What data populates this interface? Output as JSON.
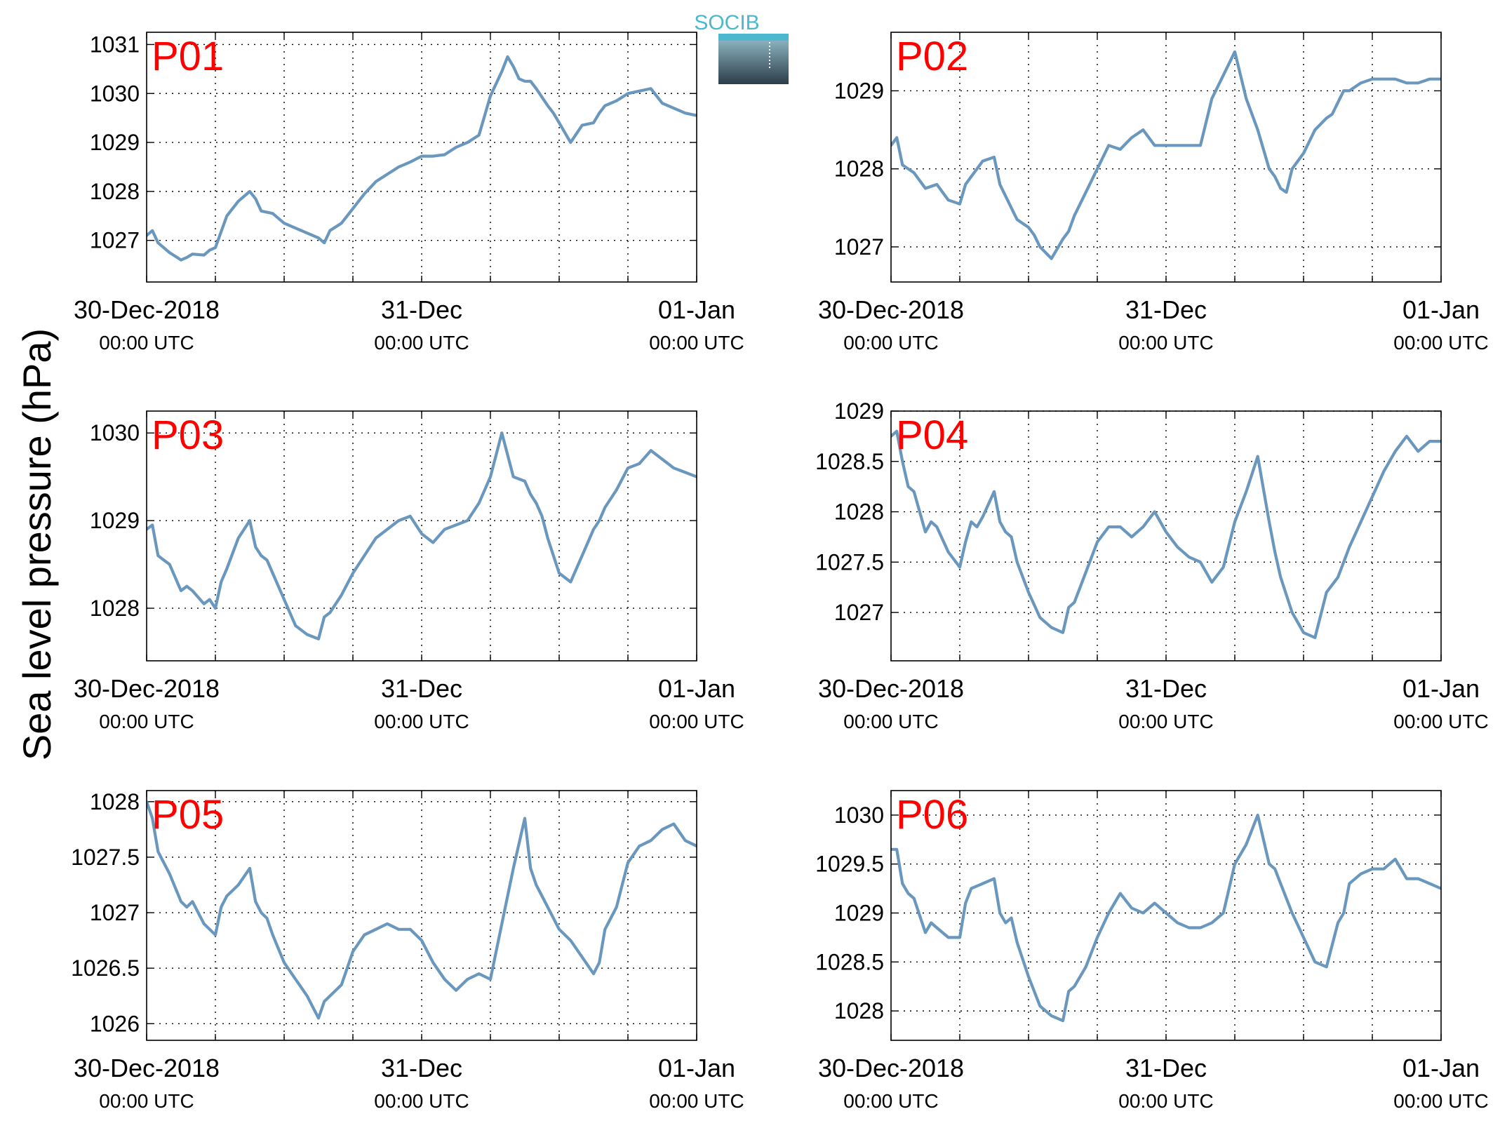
{
  "figure": {
    "ylabel": "Sea level pressure (hPa)",
    "logo": {
      "text": "SOCIB",
      "colors": [
        "#4bb8d0",
        "#8ab0bd",
        "#2b3d48"
      ]
    },
    "line_color": "#6a97bd",
    "label_color": "#ff0000"
  },
  "chart_data": [
    {
      "type": "line",
      "title": "P01",
      "x_range": [
        0,
        48
      ],
      "ylim": [
        1026.15,
        1031.25
      ],
      "yticks": [
        1027,
        1028,
        1029,
        1030,
        1031
      ],
      "ytick_labels": [
        "1027",
        "1028",
        "1029",
        "1030",
        "1031"
      ],
      "xticks": [
        0,
        24,
        48
      ],
      "xtick_labels": [
        [
          "30-Dec-2018",
          "00:00 UTC"
        ],
        [
          "31-Dec",
          "00:00 UTC"
        ],
        [
          "01-Jan",
          "00:00 UTC"
        ]
      ],
      "xgrid": [
        0,
        6,
        12,
        18,
        24,
        30,
        36,
        42,
        48
      ],
      "grid": true,
      "x": [
        0,
        0.5,
        1,
        2,
        3,
        3.5,
        4,
        5,
        5.5,
        6,
        7,
        8,
        9,
        9.5,
        10,
        11,
        12,
        13,
        14,
        15,
        15.5,
        16,
        17,
        18,
        19,
        20,
        21,
        22,
        23,
        24,
        25,
        26,
        27,
        28,
        29,
        30,
        31,
        31.5,
        32,
        32.5,
        33,
        33.5,
        34,
        35,
        35.5,
        36,
        37,
        38,
        39,
        39.5,
        40,
        41,
        42,
        43,
        44,
        44.5,
        45,
        46,
        47,
        48
      ],
      "y": [
        1027.1,
        1027.2,
        1026.95,
        1026.75,
        1026.6,
        1026.65,
        1026.72,
        1026.7,
        1026.8,
        1026.85,
        1027.5,
        1027.8,
        1028.0,
        1027.85,
        1027.6,
        1027.55,
        1027.35,
        1027.25,
        1027.15,
        1027.05,
        1026.95,
        1027.2,
        1027.35,
        1027.65,
        1027.95,
        1028.2,
        1028.35,
        1028.5,
        1028.6,
        1028.72,
        1028.72,
        1028.75,
        1028.9,
        1029.0,
        1029.15,
        1029.95,
        1030.45,
        1030.75,
        1030.55,
        1030.3,
        1030.25,
        1030.25,
        1030.1,
        1029.75,
        1029.6,
        1029.4,
        1029.0,
        1029.35,
        1029.4,
        1029.6,
        1029.75,
        1029.85,
        1030.0,
        1030.05,
        1030.1,
        1029.95,
        1029.8,
        1029.7,
        1029.6,
        1029.55
      ]
    },
    {
      "type": "line",
      "title": "P02",
      "x_range": [
        0,
        48
      ],
      "ylim": [
        1026.55,
        1029.75
      ],
      "yticks": [
        1027,
        1028,
        1029
      ],
      "ytick_labels": [
        "1027",
        "1028",
        "1029"
      ],
      "xticks": [
        0,
        24,
        48
      ],
      "xtick_labels": [
        [
          "30-Dec-2018",
          "00:00 UTC"
        ],
        [
          "31-Dec",
          "00:00 UTC"
        ],
        [
          "01-Jan",
          "00:00 UTC"
        ]
      ],
      "xgrid": [
        0,
        6,
        12,
        18,
        24,
        30,
        36,
        42,
        48
      ],
      "grid": true,
      "x": [
        0,
        0.5,
        1,
        1.5,
        2,
        3,
        4,
        5,
        6,
        6.5,
        7,
        7.5,
        8,
        9,
        9.5,
        10,
        11,
        12,
        12.5,
        13,
        14,
        15,
        15.5,
        16,
        17,
        18,
        19,
        20,
        21,
        22,
        23,
        24,
        25,
        26,
        27,
        28,
        29,
        30,
        31,
        32,
        33,
        33.5,
        34,
        34.5,
        35,
        36,
        37,
        38,
        38.5,
        39,
        39.5,
        40,
        41,
        42,
        43,
        44,
        45,
        46,
        47,
        48
      ],
      "y": [
        1028.3,
        1028.4,
        1028.05,
        1028.0,
        1027.95,
        1027.75,
        1027.8,
        1027.6,
        1027.55,
        1027.8,
        1027.9,
        1028.0,
        1028.1,
        1028.15,
        1027.8,
        1027.65,
        1027.35,
        1027.25,
        1027.15,
        1027.0,
        1026.85,
        1027.1,
        1027.2,
        1027.4,
        1027.7,
        1028.0,
        1028.3,
        1028.25,
        1028.4,
        1028.5,
        1028.3,
        1028.3,
        1028.3,
        1028.3,
        1028.3,
        1028.9,
        1029.2,
        1029.5,
        1028.9,
        1028.5,
        1028.0,
        1027.9,
        1027.75,
        1027.7,
        1028.0,
        1028.2,
        1028.5,
        1028.65,
        1028.7,
        1028.85,
        1029.0,
        1029.0,
        1029.1,
        1029.15,
        1029.15,
        1029.15,
        1029.1,
        1029.1,
        1029.15,
        1029.15
      ]
    },
    {
      "type": "line",
      "title": "P03",
      "x_range": [
        0,
        48
      ],
      "ylim": [
        1027.4,
        1030.25
      ],
      "yticks": [
        1028,
        1029,
        1030
      ],
      "ytick_labels": [
        "1028",
        "1029",
        "1030"
      ],
      "xticks": [
        0,
        24,
        48
      ],
      "xtick_labels": [
        [
          "30-Dec-2018",
          "00:00 UTC"
        ],
        [
          "31-Dec",
          "00:00 UTC"
        ],
        [
          "01-Jan",
          "00:00 UTC"
        ]
      ],
      "xgrid": [
        0,
        6,
        12,
        18,
        24,
        30,
        36,
        42,
        48
      ],
      "grid": true,
      "x": [
        0,
        0.5,
        1,
        1.5,
        2,
        3,
        3.5,
        4,
        5,
        5.5,
        6,
        6.5,
        7,
        8,
        9,
        9.5,
        10,
        10.5,
        11,
        12,
        13,
        14,
        15,
        15.5,
        16,
        17,
        18,
        19,
        20,
        21,
        22,
        23,
        24,
        25,
        26,
        27,
        28,
        29,
        30,
        31,
        32,
        33,
        33.5,
        34,
        34.5,
        35,
        36,
        37,
        38,
        39,
        39.5,
        40,
        41,
        42,
        43,
        44,
        45,
        46,
        47,
        48
      ],
      "y": [
        1028.9,
        1028.95,
        1028.6,
        1028.55,
        1028.5,
        1028.2,
        1028.25,
        1028.2,
        1028.05,
        1028.1,
        1028.0,
        1028.3,
        1028.45,
        1028.8,
        1029.0,
        1028.7,
        1028.6,
        1028.55,
        1028.4,
        1028.1,
        1027.8,
        1027.7,
        1027.65,
        1027.9,
        1027.95,
        1028.15,
        1028.4,
        1028.6,
        1028.8,
        1028.9,
        1029.0,
        1029.05,
        1028.85,
        1028.75,
        1028.9,
        1028.95,
        1029.0,
        1029.2,
        1029.5,
        1030.0,
        1029.5,
        1029.45,
        1029.3,
        1029.2,
        1029.05,
        1028.8,
        1028.4,
        1028.3,
        1028.6,
        1028.9,
        1029.0,
        1029.15,
        1029.35,
        1029.6,
        1029.65,
        1029.8,
        1029.7,
        1029.6,
        1029.55,
        1029.5
      ]
    },
    {
      "type": "line",
      "title": "P04",
      "x_range": [
        0,
        48
      ],
      "ylim": [
        1026.52,
        1029.0
      ],
      "yticks": [
        1027,
        1027.5,
        1028,
        1028.5,
        1029
      ],
      "ytick_labels": [
        "1027",
        "1027.5",
        "1028",
        "1028.5",
        "1029"
      ],
      "xticks": [
        0,
        24,
        48
      ],
      "xtick_labels": [
        [
          "30-Dec-2018",
          "00:00 UTC"
        ],
        [
          "31-Dec",
          "00:00 UTC"
        ],
        [
          "01-Jan",
          "00:00 UTC"
        ]
      ],
      "xgrid": [
        0,
        6,
        12,
        18,
        24,
        30,
        36,
        42,
        48
      ],
      "grid": true,
      "x": [
        0,
        0.5,
        1,
        1.5,
        2,
        3,
        3.5,
        4,
        5,
        6,
        6.5,
        7,
        7.5,
        8,
        9,
        9.5,
        10,
        10.5,
        11,
        12,
        13,
        14,
        15,
        15.5,
        16,
        17,
        18,
        19,
        20,
        21,
        22,
        23,
        24,
        25,
        26,
        27,
        28,
        29,
        30,
        31,
        32,
        33,
        33.5,
        34,
        35,
        36,
        37,
        38,
        39,
        39.5,
        40,
        41,
        42,
        43,
        44,
        45,
        46,
        47,
        48
      ],
      "y": [
        1028.75,
        1028.8,
        1028.5,
        1028.25,
        1028.2,
        1027.8,
        1027.9,
        1027.85,
        1027.6,
        1027.45,
        1027.7,
        1027.9,
        1027.85,
        1027.95,
        1028.2,
        1027.9,
        1027.8,
        1027.75,
        1027.5,
        1027.2,
        1026.95,
        1026.85,
        1026.8,
        1027.05,
        1027.1,
        1027.4,
        1027.7,
        1027.85,
        1027.85,
        1027.75,
        1027.85,
        1028.0,
        1027.8,
        1027.65,
        1027.55,
        1027.5,
        1027.3,
        1027.45,
        1027.9,
        1028.2,
        1028.55,
        1027.9,
        1027.6,
        1027.35,
        1027.0,
        1026.8,
        1026.75,
        1027.2,
        1027.35,
        1027.5,
        1027.65,
        1027.9,
        1028.15,
        1028.4,
        1028.6,
        1028.75,
        1028.6,
        1028.7,
        1028.7
      ]
    },
    {
      "type": "line",
      "title": "P05",
      "x_range": [
        0,
        48
      ],
      "ylim": [
        1025.85,
        1028.1
      ],
      "yticks": [
        1026,
        1026.5,
        1027,
        1027.5,
        1028
      ],
      "ytick_labels": [
        "1026",
        "1026.5",
        "1027",
        "1027.5",
        "1028"
      ],
      "xticks": [
        0,
        24,
        48
      ],
      "xtick_labels": [
        [
          "30-Dec-2018",
          "00:00 UTC"
        ],
        [
          "31-Dec",
          "00:00 UTC"
        ],
        [
          "01-Jan",
          "00:00 UTC"
        ]
      ],
      "xgrid": [
        0,
        6,
        12,
        18,
        24,
        30,
        36,
        42,
        48
      ],
      "grid": true,
      "x": [
        0,
        0.5,
        1,
        2,
        3,
        3.5,
        4,
        5,
        5.5,
        6,
        6.5,
        7,
        8,
        9,
        9.5,
        10,
        10.5,
        11,
        12,
        13,
        14,
        15,
        15.5,
        16,
        17,
        18,
        19,
        20,
        21,
        22,
        23,
        24,
        25,
        26,
        27,
        28,
        29,
        30,
        31,
        32,
        33,
        33.5,
        34,
        35,
        36,
        37,
        38,
        39,
        39.5,
        40,
        41,
        42,
        43,
        44,
        45,
        46,
        47,
        48
      ],
      "y": [
        1028.0,
        1027.85,
        1027.55,
        1027.35,
        1027.1,
        1027.05,
        1027.1,
        1026.9,
        1026.85,
        1026.8,
        1027.05,
        1027.15,
        1027.25,
        1027.4,
        1027.1,
        1027.0,
        1026.95,
        1026.8,
        1026.55,
        1026.4,
        1026.25,
        1026.05,
        1026.2,
        1026.25,
        1026.35,
        1026.65,
        1026.8,
        1026.85,
        1026.9,
        1026.85,
        1026.85,
        1026.75,
        1026.55,
        1026.4,
        1026.3,
        1026.4,
        1026.45,
        1026.4,
        1026.9,
        1027.4,
        1027.85,
        1027.4,
        1027.25,
        1027.05,
        1026.85,
        1026.75,
        1026.6,
        1026.45,
        1026.55,
        1026.85,
        1027.05,
        1027.45,
        1027.6,
        1027.65,
        1027.75,
        1027.8,
        1027.65,
        1027.6
      ]
    },
    {
      "type": "line",
      "title": "P06",
      "x_range": [
        0,
        48
      ],
      "ylim": [
        1027.7,
        1030.25
      ],
      "yticks": [
        1028,
        1028.5,
        1029,
        1029.5,
        1030
      ],
      "ytick_labels": [
        "1028",
        "1028.5",
        "1029",
        "1029.5",
        "1030"
      ],
      "xticks": [
        0,
        24,
        48
      ],
      "xtick_labels": [
        [
          "30-Dec-2018",
          "00:00 UTC"
        ],
        [
          "31-Dec",
          "00:00 UTC"
        ],
        [
          "01-Jan",
          "00:00 UTC"
        ]
      ],
      "xgrid": [
        0,
        6,
        12,
        18,
        24,
        30,
        36,
        42,
        48
      ],
      "grid": true,
      "x": [
        0,
        0.5,
        1,
        1.5,
        2,
        3,
        3.5,
        4,
        5,
        6,
        6.5,
        7,
        8,
        9,
        9.5,
        10,
        10.5,
        11,
        12,
        13,
        14,
        15,
        15.5,
        16,
        17,
        18,
        19,
        20,
        21,
        22,
        23,
        24,
        25,
        26,
        27,
        28,
        29,
        30,
        31,
        32,
        33,
        33.5,
        34,
        35,
        36,
        37,
        38,
        39,
        39.5,
        40,
        41,
        42,
        43,
        44,
        45,
        46,
        47,
        48
      ],
      "y": [
        1029.65,
        1029.65,
        1029.3,
        1029.2,
        1029.15,
        1028.8,
        1028.9,
        1028.85,
        1028.75,
        1028.75,
        1029.1,
        1029.25,
        1029.3,
        1029.35,
        1029.0,
        1028.9,
        1028.95,
        1028.7,
        1028.35,
        1028.05,
        1027.95,
        1027.9,
        1028.2,
        1028.25,
        1028.45,
        1028.75,
        1029.0,
        1029.2,
        1029.05,
        1029.0,
        1029.1,
        1029.0,
        1028.9,
        1028.85,
        1028.85,
        1028.9,
        1029.0,
        1029.5,
        1029.7,
        1030.0,
        1029.5,
        1029.45,
        1029.3,
        1029.0,
        1028.75,
        1028.5,
        1028.45,
        1028.9,
        1029.0,
        1029.3,
        1029.4,
        1029.45,
        1029.45,
        1029.55,
        1029.35,
        1029.35,
        1029.3,
        1029.25
      ]
    }
  ]
}
